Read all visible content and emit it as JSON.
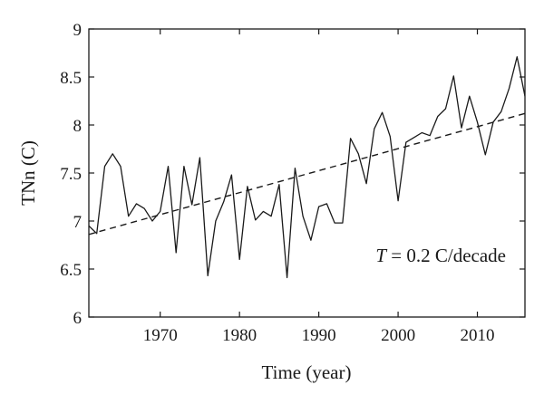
{
  "chart_data": {
    "type": "line",
    "title": "",
    "xlabel": "Time (year)",
    "ylabel": "TNn (C)",
    "xlim": [
      1961,
      2016
    ],
    "ylim": [
      6,
      9
    ],
    "x_ticks": [
      1970,
      1980,
      1990,
      2000,
      2010
    ],
    "y_ticks": [
      "6",
      "6.5",
      "7",
      "7.5",
      "8",
      "8.5",
      "9"
    ],
    "grid": false,
    "annotation": {
      "prefix": "T",
      "text": " = 0.2 C/decade"
    },
    "series": [
      {
        "style": "solid",
        "x": [
          1961,
          1962,
          1963,
          1964,
          1965,
          1966,
          1967,
          1968,
          1969,
          1970,
          1971,
          1972,
          1973,
          1974,
          1975,
          1976,
          1977,
          1978,
          1979,
          1980,
          1981,
          1982,
          1983,
          1984,
          1985,
          1986,
          1987,
          1988,
          1989,
          1990,
          1991,
          1992,
          1993,
          1994,
          1995,
          1996,
          1997,
          1998,
          1999,
          2000,
          2001,
          2002,
          2003,
          2004,
          2005,
          2006,
          2007,
          2008,
          2009,
          2010,
          2011,
          2012,
          2013,
          2014,
          2015,
          2016
        ],
        "values": [
          6.95,
          6.87,
          7.57,
          7.7,
          7.57,
          7.05,
          7.18,
          7.13,
          7.0,
          7.1,
          7.57,
          6.67,
          7.57,
          7.17,
          7.66,
          6.43,
          7.0,
          7.2,
          7.48,
          6.6,
          7.36,
          7.01,
          7.1,
          7.05,
          7.38,
          6.41,
          7.55,
          7.05,
          6.8,
          7.15,
          7.18,
          6.98,
          6.98,
          7.86,
          7.7,
          7.39,
          7.96,
          8.13,
          7.88,
          7.21,
          7.82,
          7.87,
          7.92,
          7.89,
          8.09,
          8.17,
          8.51,
          7.97,
          8.3,
          8.03,
          7.69,
          8.03,
          8.14,
          8.38,
          8.71,
          8.3
        ]
      },
      {
        "style": "dashed",
        "x": [
          1961,
          2016
        ],
        "values": [
          6.86,
          8.12
        ]
      }
    ]
  }
}
